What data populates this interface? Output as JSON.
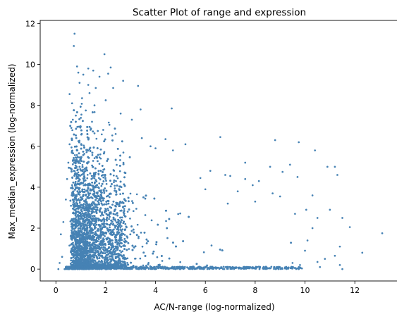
{
  "chart_data": {
    "type": "scatter",
    "title": "Scatter Plot of range and expression",
    "xlabel": "AC/N-range (log-normalized)",
    "ylabel": "Max_median_expression (log-normalized)",
    "xlim": [
      -0.63,
      13.75
    ],
    "ylim": [
      -0.58,
      12.15
    ],
    "xticks": [
      0,
      2,
      4,
      6,
      8,
      10,
      12
    ],
    "yticks": [
      0,
      2,
      4,
      6,
      8,
      10,
      12
    ],
    "grid": false,
    "marker_color": "#4682B4",
    "points": [
      [
        0.75,
        11.5
      ],
      [
        0.72,
        10.9
      ],
      [
        1.95,
        10.5
      ],
      [
        0.85,
        9.9
      ],
      [
        2.2,
        9.85
      ],
      [
        1.3,
        9.8
      ],
      [
        1.5,
        9.7
      ],
      [
        1.1,
        9.5
      ],
      [
        0.9,
        9.6
      ],
      [
        1.75,
        9.4
      ],
      [
        2.1,
        9.55
      ],
      [
        2.7,
        9.2
      ],
      [
        1.3,
        9.0
      ],
      [
        3.3,
        8.95
      ],
      [
        0.95,
        9.1
      ],
      [
        1.6,
        8.85
      ],
      [
        2.3,
        8.85
      ],
      [
        1.35,
        8.6
      ],
      [
        0.55,
        8.55
      ],
      [
        1.05,
        8.35
      ],
      [
        2.0,
        8.25
      ],
      [
        0.65,
        8.1
      ],
      [
        1.55,
        8.0
      ],
      [
        3.4,
        7.8
      ],
      [
        4.65,
        7.85
      ],
      [
        1.2,
        7.75
      ],
      [
        2.6,
        7.6
      ],
      [
        0.8,
        7.5
      ],
      [
        3.05,
        7.3
      ],
      [
        1.45,
        7.2
      ],
      [
        2.15,
        7.05
      ],
      [
        2.4,
        6.6
      ],
      [
        1.9,
        6.8
      ],
      [
        6.6,
        6.45
      ],
      [
        4.4,
        6.35
      ],
      [
        8.8,
        6.3
      ],
      [
        9.75,
        6.2
      ],
      [
        3.45,
        6.4
      ],
      [
        5.2,
        6.1
      ],
      [
        4.7,
        5.8
      ],
      [
        10.4,
        5.8
      ],
      [
        4.0,
        5.9
      ],
      [
        3.8,
        6.0
      ],
      [
        10.9,
        5.0
      ],
      [
        11.3,
        4.6
      ],
      [
        11.2,
        5.0
      ],
      [
        9.4,
        5.1
      ],
      [
        7.6,
        5.2
      ],
      [
        8.6,
        5.0
      ],
      [
        9.1,
        4.75
      ],
      [
        7.0,
        4.55
      ],
      [
        5.8,
        4.45
      ],
      [
        6.2,
        4.8
      ],
      [
        9.7,
        4.5
      ],
      [
        6.8,
        4.6
      ],
      [
        8.15,
        4.3
      ],
      [
        7.6,
        4.4
      ],
      [
        10.3,
        3.6
      ],
      [
        9.0,
        3.55
      ],
      [
        8.7,
        3.7
      ],
      [
        6.0,
        3.9
      ],
      [
        7.3,
        3.8
      ],
      [
        7.9,
        4.1
      ],
      [
        10.05,
        2.9
      ],
      [
        11.0,
        2.9
      ],
      [
        9.6,
        2.7
      ],
      [
        8.0,
        3.3
      ],
      [
        6.9,
        3.2
      ],
      [
        10.5,
        2.5
      ],
      [
        11.8,
        2.05
      ],
      [
        11.5,
        2.5
      ],
      [
        13.1,
        1.75
      ],
      [
        10.3,
        2.0
      ],
      [
        10.1,
        1.4
      ],
      [
        11.4,
        1.1
      ],
      [
        12.3,
        0.8
      ],
      [
        10.8,
        0.5
      ],
      [
        11.4,
        0.2
      ],
      [
        11.5,
        0.0
      ],
      [
        10.5,
        0.35
      ],
      [
        9.5,
        0.3
      ],
      [
        10.0,
        0.9
      ],
      [
        9.8,
        0.2
      ],
      [
        11.2,
        0.65
      ],
      [
        10.6,
        0.1
      ],
      [
        0.35,
        0.0
      ],
      [
        0.25,
        0.6
      ],
      [
        0.2,
        1.7
      ],
      [
        0.3,
        2.3
      ],
      [
        0.4,
        3.4
      ],
      [
        0.45,
        4.4
      ],
      [
        0.5,
        5.2
      ],
      [
        0.55,
        6.1
      ],
      [
        0.62,
        6.9
      ],
      [
        0.68,
        7.3
      ],
      [
        0.1,
        0.0
      ],
      [
        0.15,
        0.3
      ]
    ],
    "cloud_note": "dense cloud of additional points concentrated at x≈0.5–3, y≈0–5, thinning toward larger x and y"
  }
}
